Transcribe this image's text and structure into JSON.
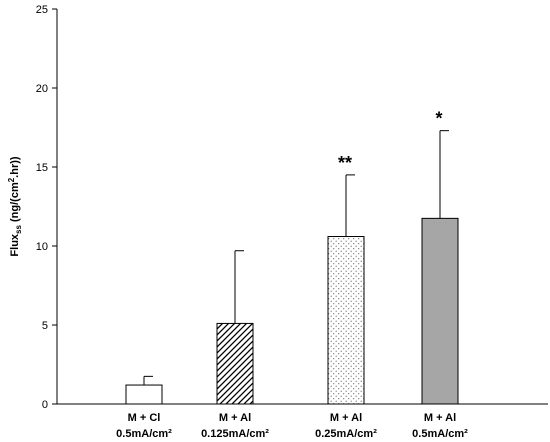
{
  "chart_data": {
    "type": "bar",
    "categories": [
      {
        "line1": "M + Cl",
        "line2": "0.5mA/cm²"
      },
      {
        "line1": "M + Al",
        "line2": "0.125mA/cm²"
      },
      {
        "line1": "M + Al",
        "line2": "0.25mA/cm²"
      },
      {
        "line1": "M + Al",
        "line2": "0.5mA/cm²"
      }
    ],
    "values": [
      1.2,
      5.1,
      10.6,
      11.75
    ],
    "errors": [
      0.55,
      4.6,
      3.9,
      5.55
    ],
    "significance": [
      "",
      "",
      "**",
      "*"
    ],
    "fills": [
      "plain",
      "diagonal",
      "dotted",
      "solid"
    ],
    "colors": {
      "solid_fill": "#a6a6a6",
      "stroke": "#000000"
    },
    "ylabel": {
      "main": "Flux",
      "sub": "ss",
      "rest": " (ng/(cm",
      "sup": "2",
      "tail": ".hr))"
    },
    "ylim": [
      0,
      25
    ],
    "yticks": [
      0,
      5,
      10,
      15,
      20,
      25
    ],
    "grid": false
  }
}
